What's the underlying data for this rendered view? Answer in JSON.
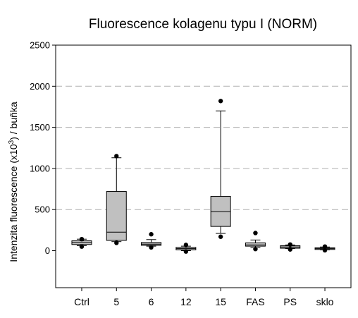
{
  "chart_data": {
    "type": "box",
    "title": "Fluorescence kolagenu typu I (NORM)",
    "ylabel": {
      "prefix": "Intenzita fluorescence (x10",
      "superscript": "3",
      "suffix": ") / buňka"
    },
    "xlabel": "",
    "ylim": [
      -450,
      2500
    ],
    "yticks": [
      0,
      500,
      1000,
      1500,
      2000,
      2500
    ],
    "grid": "horizontal-dashed",
    "box_color": "#c0c0c0",
    "categories": [
      "Ctrl",
      "5",
      "6",
      "12",
      "15",
      "FAS",
      "PS",
      "sklo"
    ],
    "boxes": [
      {
        "q1": 75,
        "median": 100,
        "q3": 120,
        "whisker_low": 60,
        "whisker_high": 140,
        "outliers": [
          50,
          140
        ]
      },
      {
        "q1": 125,
        "median": 225,
        "q3": 720,
        "whisker_low": 110,
        "whisker_high": 1130,
        "outliers": [
          95,
          1150
        ]
      },
      {
        "q1": 65,
        "median": 80,
        "q3": 100,
        "whisker_low": 55,
        "whisker_high": 135,
        "outliers": [
          40,
          200
        ]
      },
      {
        "q1": 10,
        "median": 25,
        "q3": 40,
        "whisker_low": 0,
        "whisker_high": 55,
        "outliers": [
          -10,
          70
        ]
      },
      {
        "q1": 295,
        "median": 475,
        "q3": 660,
        "whisker_low": 210,
        "whisker_high": 1700,
        "outliers": [
          170,
          1820
        ]
      },
      {
        "q1": 55,
        "median": 70,
        "q3": 95,
        "whisker_low": 35,
        "whisker_high": 130,
        "outliers": [
          20,
          215
        ]
      },
      {
        "q1": 30,
        "median": 45,
        "q3": 60,
        "whisker_low": 25,
        "whisker_high": 70,
        "outliers": [
          15,
          75
        ]
      },
      {
        "q1": 15,
        "median": 25,
        "q3": 35,
        "whisker_low": 10,
        "whisker_high": 45,
        "outliers": [
          5,
          50
        ]
      }
    ]
  }
}
